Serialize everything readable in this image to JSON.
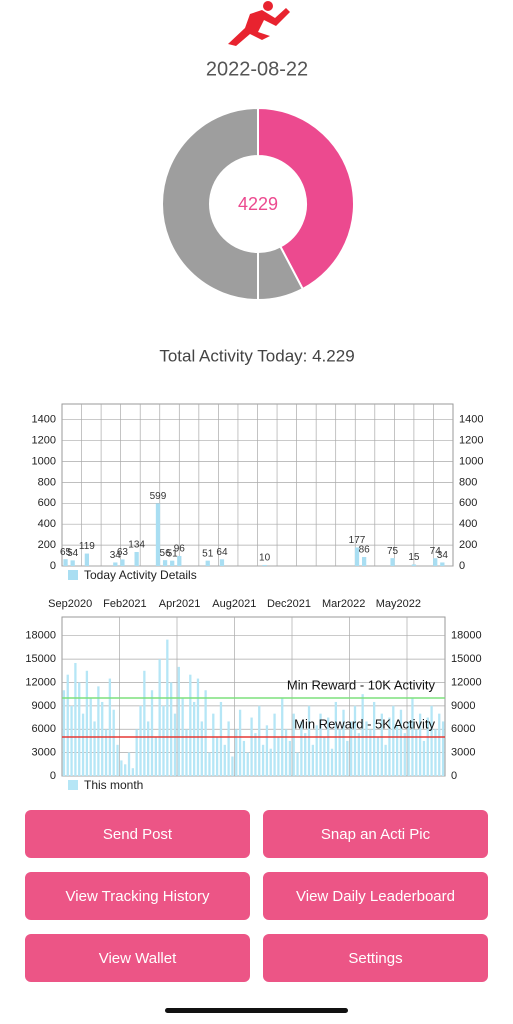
{
  "header": {
    "date": "2022-08-22",
    "summary": "Total Activity Today: 4.229"
  },
  "chart_data": [
    {
      "type": "pie",
      "center_label": "4229",
      "values": [
        4229,
        771,
        5000
      ],
      "colors": [
        "#ec4a8f",
        "#9e9e9e",
        "#9e9e9e"
      ]
    },
    {
      "type": "bar",
      "legend": "Today Activity Details",
      "color": "#a9def2",
      "ylim": [
        0,
        1550
      ],
      "yticks": [
        0,
        200,
        400,
        600,
        800,
        1000,
        1200,
        1400
      ],
      "grid": true,
      "values": [
        65,
        54,
        null,
        119,
        null,
        null,
        null,
        34,
        63,
        null,
        134,
        null,
        null,
        599,
        56,
        51,
        96,
        null,
        null,
        null,
        51,
        null,
        64,
        null,
        null,
        null,
        null,
        null,
        10,
        null,
        null,
        null,
        null,
        null,
        null,
        null,
        null,
        null,
        null,
        null,
        null,
        177,
        86,
        null,
        null,
        null,
        75,
        null,
        null,
        15,
        null,
        null,
        74,
        34,
        null
      ]
    },
    {
      "type": "bar",
      "legend": "This month",
      "color": "#b5e6f6",
      "ylim": [
        0,
        20400
      ],
      "yticks": [
        0,
        3000,
        6000,
        9000,
        12000,
        15000,
        18000
      ],
      "grid": true,
      "x_labels": [
        "Sep2020",
        "Feb2021",
        "Apr2021",
        "Aug2021",
        "Dec2021",
        "Mar2022",
        "May2022"
      ],
      "reference_lines": [
        {
          "value": 10000,
          "label": "Min Reward - 10K Activity",
          "color": "#7de07d"
        },
        {
          "value": 5000,
          "label": "Min Reward - 5K Activity",
          "color": "#e53935"
        }
      ],
      "values": [
        11000,
        13000,
        9000,
        14500,
        12000,
        8000,
        13500,
        10000,
        7000,
        11500,
        9500,
        6000,
        12500,
        8500,
        4000,
        2000,
        1500,
        3000,
        1000,
        6000,
        9000,
        13500,
        7000,
        11000,
        5000,
        15000,
        9000,
        17500,
        12000,
        8000,
        14000,
        10000,
        6000,
        13000,
        9500,
        12500,
        7000,
        11000,
        3000,
        8000,
        5000,
        9500,
        4000,
        7000,
        2500,
        6000,
        8500,
        4500,
        3000,
        7500,
        5500,
        9000,
        4000,
        6500,
        3500,
        8000,
        5000,
        10000,
        6000,
        4500,
        8000,
        3000,
        7000,
        5500,
        9000,
        4000,
        6500,
        8000,
        5000,
        7500,
        3500,
        9500,
        6000,
        8500,
        4500,
        7000,
        9000,
        5500,
        10500,
        7000,
        6000,
        9500,
        5000,
        8000,
        4000,
        7500,
        9000,
        6500,
        8500,
        5500,
        7000,
        10000,
        6000,
        8000,
        4500,
        7500,
        9000,
        6000,
        8000,
        7000
      ]
    }
  ],
  "buttons": [
    "Send Post",
    "Snap an Acti Pic",
    "View Tracking History",
    "View Daily Leaderboard",
    "View Wallet",
    "Settings"
  ]
}
